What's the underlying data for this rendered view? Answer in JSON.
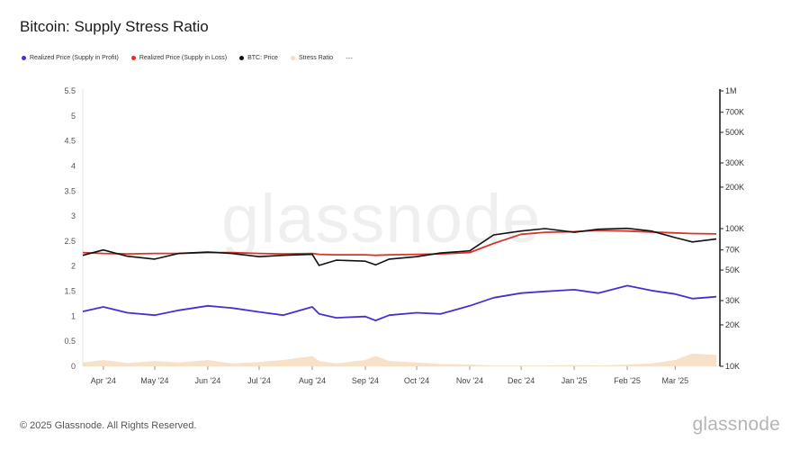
{
  "header": {
    "title": "Bitcoin: Supply Stress Ratio"
  },
  "legend": [
    {
      "label": "Realized Price (Supply in Profit)",
      "color": "#4a2fd0"
    },
    {
      "label": "Realized Price (Supply in Loss)",
      "color": "#d9342b"
    },
    {
      "label": "BTC: Price",
      "color": "#111111"
    },
    {
      "label": "Stress Ratio",
      "color": "#f6dcc0"
    }
  ],
  "legend_more": "---",
  "footer": {
    "copyright": "© 2025 Glassnode. All Rights Reserved.",
    "brand": "glassnode"
  },
  "watermark": "glassnode",
  "chart_data": {
    "type": "line",
    "title": "Bitcoin: Supply Stress Ratio",
    "x_range": [
      "2024-03-20",
      "2025-03-25"
    ],
    "x_ticks": [
      "Apr '24",
      "May '24",
      "Jun '24",
      "Jul '24",
      "Aug '24",
      "Sep '24",
      "Oct '24",
      "Nov '24",
      "Dec '24",
      "Jan '25",
      "Feb '25",
      "Mar '25"
    ],
    "y_left": {
      "ticks": [
        "0",
        "0.5",
        "1",
        "1.5",
        "2",
        "2.5",
        "3",
        "3.5",
        "4",
        "4.5",
        "5",
        "5.5"
      ],
      "range": [
        0,
        5.5
      ]
    },
    "y_right": {
      "scale": "log",
      "ticks": [
        "10K",
        "20K",
        "30K",
        "50K",
        "70K",
        "100K",
        "200K",
        "300K",
        "500K",
        "700K",
        "1M"
      ],
      "range": [
        10000,
        1000000
      ]
    },
    "grid": false,
    "legend_position": "top-left",
    "x": [
      "2024-03-20",
      "2024-04-01",
      "2024-04-15",
      "2024-05-01",
      "2024-05-15",
      "2024-06-01",
      "2024-06-15",
      "2024-07-01",
      "2024-07-15",
      "2024-08-01",
      "2024-08-05",
      "2024-08-15",
      "2024-09-01",
      "2024-09-07",
      "2024-09-15",
      "2024-10-01",
      "2024-10-15",
      "2024-11-01",
      "2024-11-15",
      "2024-12-01",
      "2024-12-15",
      "2025-01-01",
      "2025-01-15",
      "2025-02-01",
      "2025-02-15",
      "2025-03-01",
      "2025-03-11",
      "2025-03-25"
    ],
    "series": [
      {
        "name": "Realized Price (Supply in Profit)",
        "axis": "right",
        "color": "#4a2fd0",
        "values": [
          25000,
          27000,
          24500,
          23500,
          25500,
          27500,
          26500,
          24800,
          23500,
          27000,
          24000,
          22500,
          23000,
          21500,
          23500,
          24500,
          24000,
          27500,
          31500,
          34000,
          35000,
          36000,
          34000,
          38500,
          35500,
          33500,
          31000,
          32000
        ]
      },
      {
        "name": "Realized Price (Supply in Loss)",
        "axis": "right",
        "color": "#d9342b",
        "values": [
          67000,
          66000,
          65500,
          66000,
          66000,
          67000,
          67000,
          66000,
          65500,
          66000,
          65000,
          64500,
          64500,
          64000,
          64500,
          65000,
          65500,
          67000,
          78000,
          91000,
          94000,
          95000,
          97000,
          96000,
          94500,
          93000,
          92000,
          91500
        ]
      },
      {
        "name": "BTC: Price",
        "axis": "right",
        "color": "#111111",
        "values": [
          64000,
          70000,
          63000,
          60000,
          66000,
          67500,
          66000,
          62500,
          64000,
          65000,
          54000,
          59000,
          58000,
          54500,
          60000,
          62500,
          66500,
          69000,
          90000,
          96000,
          100000,
          94000,
          99000,
          100500,
          96000,
          86000,
          80000,
          84000
        ]
      },
      {
        "name": "Stress Ratio",
        "axis": "left",
        "color": "#f6dcc0",
        "values": [
          0.07,
          0.12,
          0.06,
          0.1,
          0.07,
          0.12,
          0.05,
          0.08,
          0.12,
          0.2,
          0.1,
          0.05,
          0.12,
          0.2,
          0.1,
          0.07,
          0.04,
          0.03,
          0.01,
          0.01,
          0.01,
          0.02,
          0.01,
          0.03,
          0.05,
          0.12,
          0.25,
          0.22
        ]
      }
    ]
  }
}
